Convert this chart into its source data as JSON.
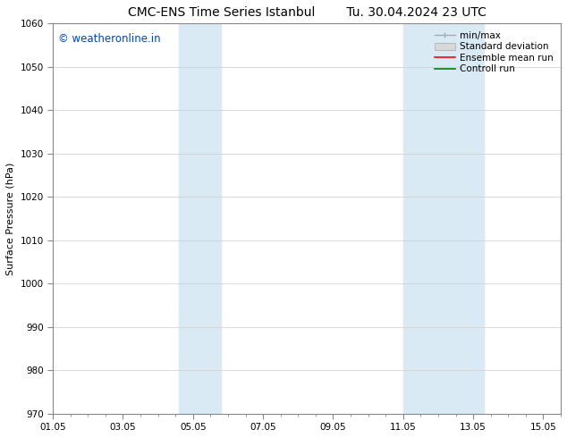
{
  "title_left": "CMC-ENS Time Series Istanbul",
  "title_right": "Tu. 30.04.2024 23 UTC",
  "ylabel": "Surface Pressure (hPa)",
  "xlabel": "",
  "ylim": [
    970,
    1060
  ],
  "yticks": [
    970,
    980,
    990,
    1000,
    1010,
    1020,
    1030,
    1040,
    1050,
    1060
  ],
  "xlim_start": 0.0,
  "xlim_end": 14.5,
  "xtick_labels": [
    "01.05",
    "03.05",
    "05.05",
    "07.05",
    "09.05",
    "11.05",
    "13.05",
    "15.05"
  ],
  "xtick_positions": [
    0,
    2,
    4,
    6,
    8,
    10,
    12,
    14
  ],
  "shaded_bands": [
    {
      "x_start": 3.6,
      "x_end": 4.8,
      "color": "#daeaf5"
    },
    {
      "x_start": 10.0,
      "x_end": 12.3,
      "color": "#daeaf5"
    }
  ],
  "watermark_text": "© weatheronline.in",
  "watermark_color": "#0044bb",
  "watermark_fontsize": 8.5,
  "legend_entries": [
    {
      "label": "min/max",
      "color": "#aaaaaa",
      "style": "minmax"
    },
    {
      "label": "Standard deviation",
      "color": "#cccccc",
      "style": "fill"
    },
    {
      "label": "Ensemble mean run",
      "color": "red",
      "style": "line"
    },
    {
      "label": "Controll run",
      "color": "green",
      "style": "line"
    }
  ],
  "background_color": "#ffffff",
  "grid_color": "#cccccc",
  "title_fontsize": 10,
  "axis_label_fontsize": 8,
  "tick_label_fontsize": 7.5,
  "legend_fontsize": 7.5
}
